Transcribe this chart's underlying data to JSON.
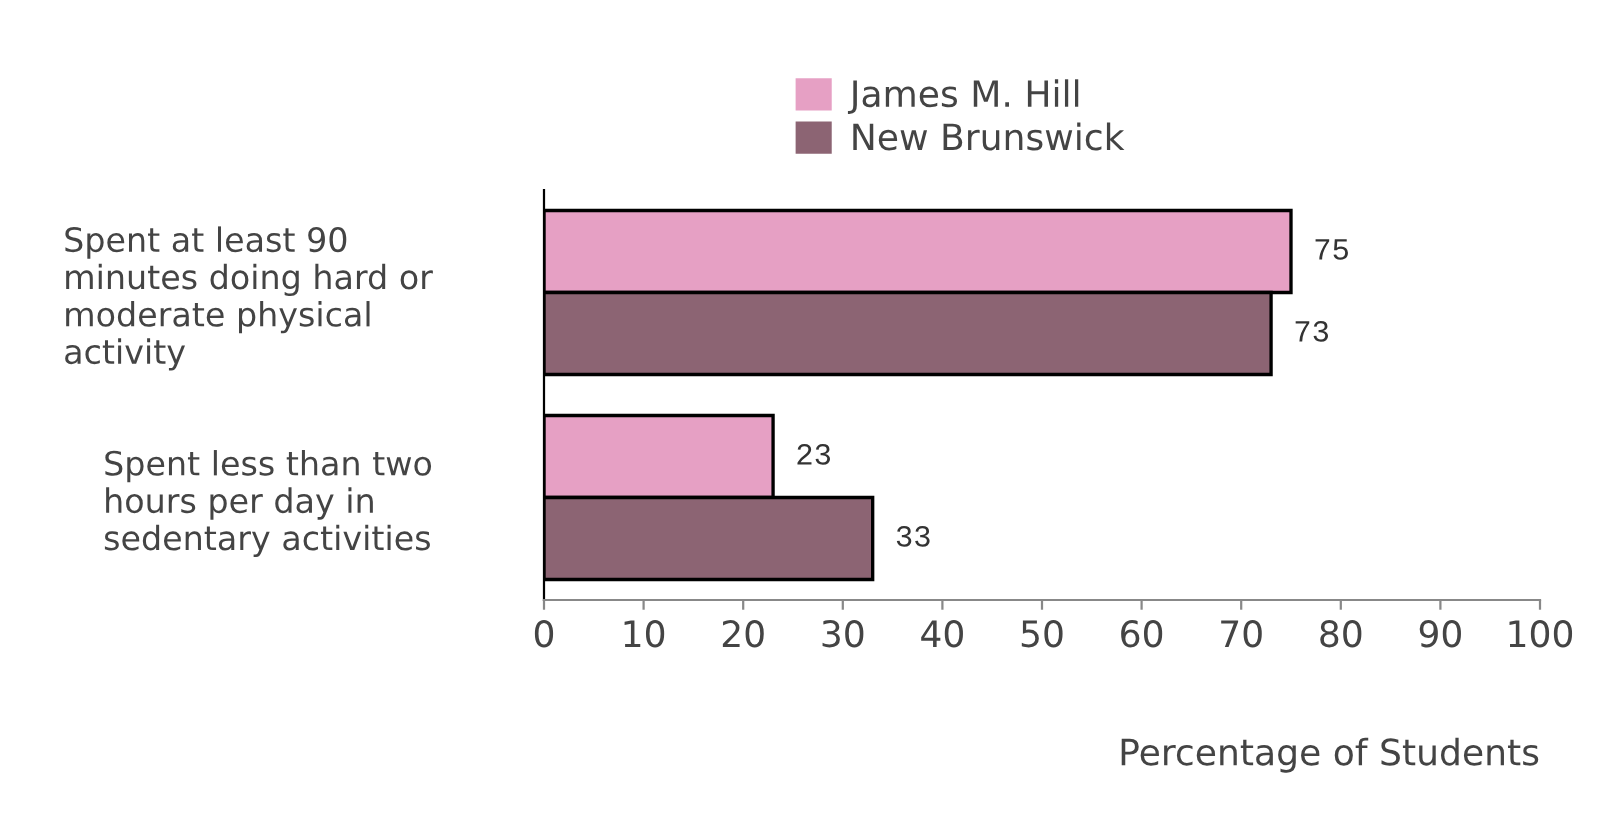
{
  "chart_data": {
    "type": "bar",
    "orientation": "horizontal",
    "categories": [
      "Spent at least 90 minutes doing hard or moderate physical activity",
      "Spent less than two hours per day in sedentary activities"
    ],
    "series": [
      {
        "name": "James M. Hill",
        "color": "#e6a0c4",
        "values": [
          75,
          23
        ]
      },
      {
        "name": "New Brunswick",
        "color": "#8c6473",
        "values": [
          73,
          33
        ]
      }
    ],
    "xlim": [
      0,
      100
    ],
    "xticks": [
      0,
      10,
      20,
      30,
      40,
      50,
      60,
      70,
      80,
      90,
      100
    ],
    "xlabel": "Percentage of Students",
    "data_labels": true,
    "legend": "top",
    "grid": false
  }
}
